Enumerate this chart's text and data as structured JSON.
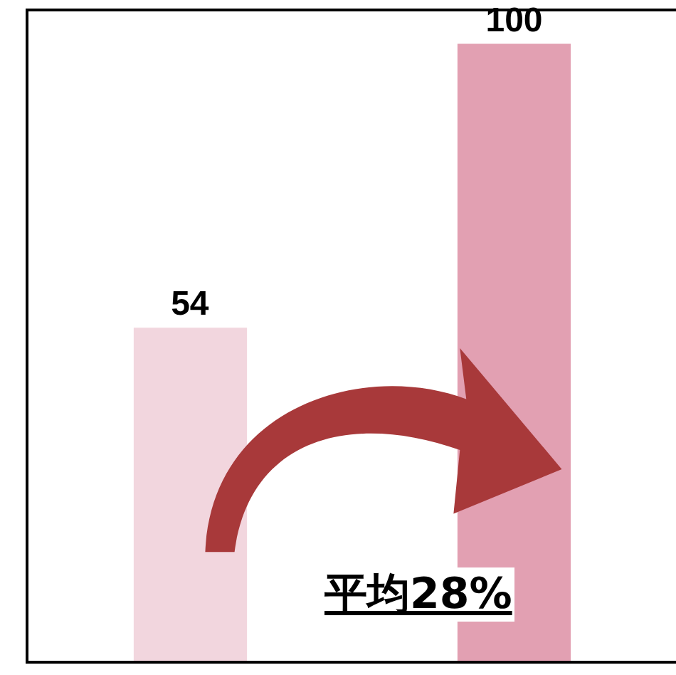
{
  "chart_data": {
    "type": "bar",
    "categories": [
      null,
      null
    ],
    "values": [
      54,
      100
    ],
    "colors": [
      "#f2d6de",
      "#e2a0b2"
    ],
    "data_labels": true,
    "annotations": [
      "平均28%"
    ],
    "tick_labels": false,
    "grid": false
  }
}
